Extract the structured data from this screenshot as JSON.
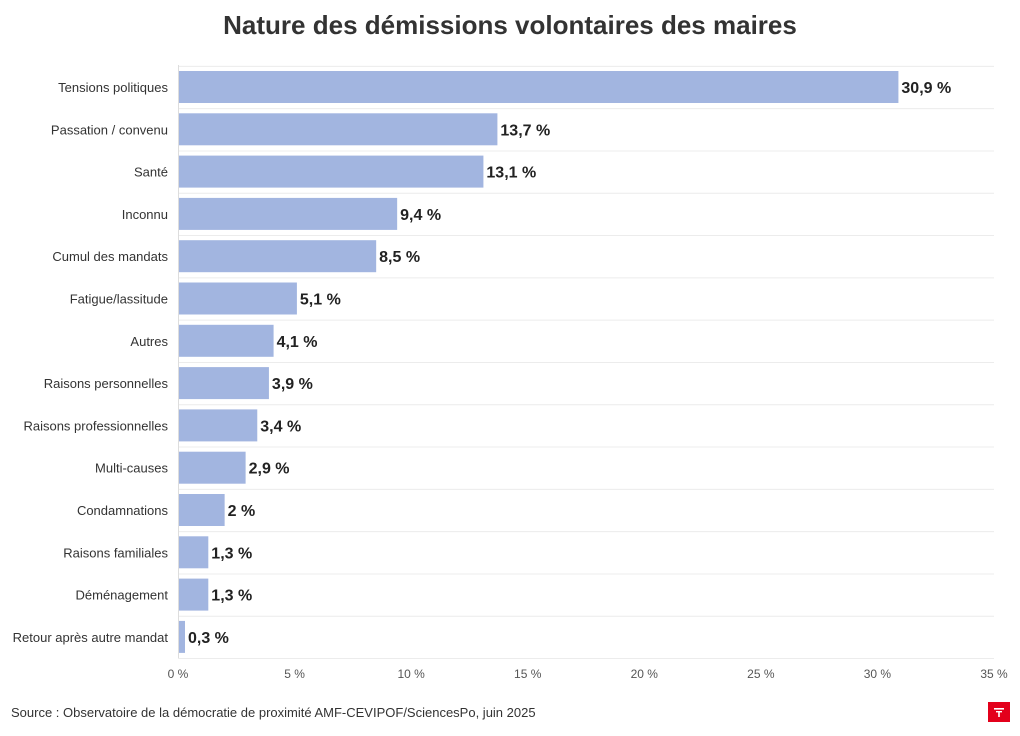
{
  "chart_data": {
    "type": "bar",
    "orientation": "horizontal",
    "title": "Nature des démissions volontaires des maires",
    "categories": [
      "Tensions politiques",
      "Passation / convenu",
      "Santé",
      "Inconnu",
      "Cumul des mandats",
      "Fatigue/lassitude",
      "Autres",
      "Raisons personnelles",
      "Raisons professionnelles",
      "Multi-causes",
      "Condamnations",
      "Raisons familiales",
      "Déménagement",
      "Retour après autre mandat"
    ],
    "values": [
      30.9,
      13.7,
      13.1,
      9.4,
      8.5,
      5.1,
      4.1,
      3.9,
      3.4,
      2.9,
      2,
      1.3,
      1.3,
      0.3
    ],
    "value_labels": [
      "30,9 %",
      "13,7 %",
      "13,1 %",
      "9,4 %",
      "8,5 %",
      "5,1 %",
      "4,1 %",
      "3,9 %",
      "3,4 %",
      "2,9 %",
      "2 %",
      "1,3 %",
      "1,3 %",
      "0,3 %"
    ],
    "xlim": [
      0,
      35
    ],
    "x_ticks": [
      0,
      5,
      10,
      15,
      20,
      25,
      30,
      35
    ],
    "x_tick_labels": [
      "0 %",
      "5 %",
      "10 %",
      "15 %",
      "20 %",
      "25 %",
      "30 %",
      "35 %"
    ],
    "xlabel": "",
    "ylabel": "",
    "grid": true,
    "bar_color": "#a2b5e0"
  },
  "footer": {
    "source": "Source : Observatoire de la démocratie de proximité AMF-CEVIPOF/SciencesPo, juin 2025"
  },
  "logo": {
    "icon": "brand-logo-icon",
    "color": "#e3001b"
  }
}
